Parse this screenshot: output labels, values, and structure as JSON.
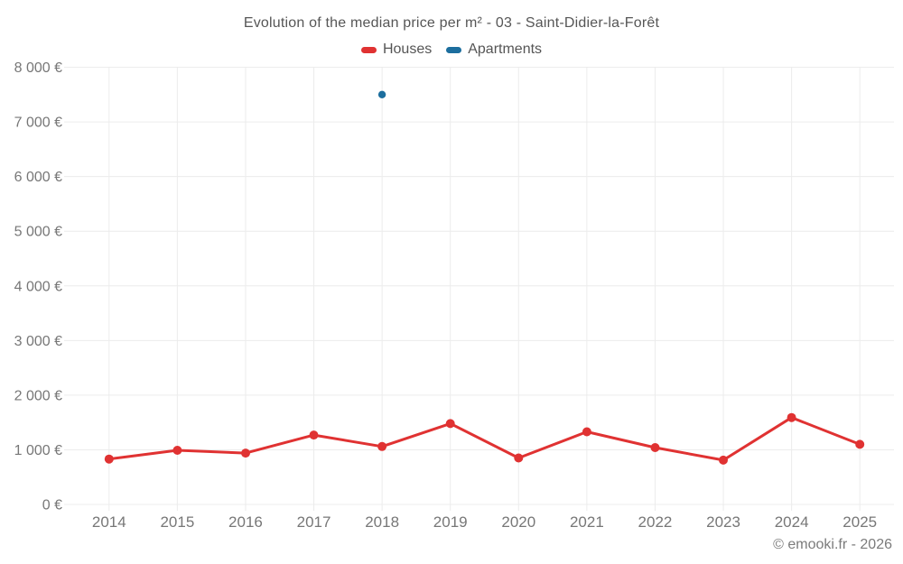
{
  "footer": {
    "copyright": "© emooki.fr - 2026"
  },
  "chart_data": {
    "type": "line",
    "title": "Evolution of the median price per m² - 03 - Saint-Didier-la-Forêt",
    "categories": [
      "2014",
      "2015",
      "2016",
      "2017",
      "2018",
      "2019",
      "2020",
      "2021",
      "2022",
      "2023",
      "2024",
      "2025"
    ],
    "series": [
      {
        "name": "Houses",
        "color": "#e03232",
        "show_line": true,
        "values": [
          830,
          990,
          940,
          1270,
          1060,
          1480,
          850,
          1330,
          1040,
          810,
          1590,
          1100
        ]
      },
      {
        "name": "Apartments",
        "color": "#1c6e9e",
        "show_line": true,
        "values": [
          null,
          null,
          null,
          null,
          7500,
          null,
          null,
          null,
          null,
          null,
          null,
          null
        ]
      }
    ],
    "ylim": [
      0,
      8000
    ],
    "ytick_step": 1000,
    "ytick_labels": [
      "0 €",
      "1 000 €",
      "2 000 €",
      "3 000 €",
      "4 000 €",
      "5 000 €",
      "6 000 €",
      "7 000 €",
      "8 000 €"
    ],
    "grid": true,
    "legend_position": "top",
    "colors": {
      "grid": "#ececec",
      "tick_text": "#777777",
      "title_text": "#565656"
    }
  }
}
